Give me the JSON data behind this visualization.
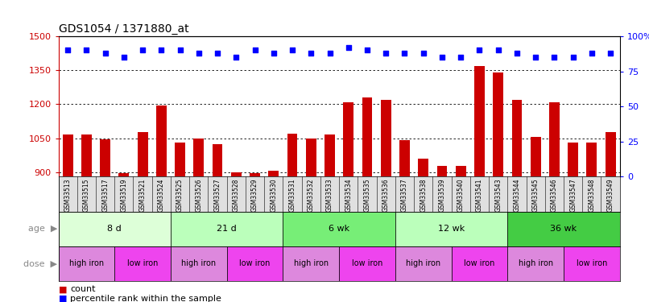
{
  "title": "GDS1054 / 1371880_at",
  "samples": [
    "GSM33513",
    "GSM33515",
    "GSM33517",
    "GSM33519",
    "GSM33521",
    "GSM33524",
    "GSM33525",
    "GSM33526",
    "GSM33527",
    "GSM33528",
    "GSM33529",
    "GSM33530",
    "GSM33531",
    "GSM33532",
    "GSM33533",
    "GSM33534",
    "GSM33535",
    "GSM33536",
    "GSM33537",
    "GSM33538",
    "GSM33539",
    "GSM33540",
    "GSM33541",
    "GSM33543",
    "GSM33544",
    "GSM33545",
    "GSM33546",
    "GSM33547",
    "GSM33548",
    "GSM33549"
  ],
  "counts": [
    1065,
    1068,
    1046,
    895,
    1078,
    1193,
    1030,
    1047,
    1022,
    898,
    897,
    908,
    1070,
    1048,
    1068,
    1210,
    1230,
    1218,
    1040,
    960,
    928,
    928,
    1370,
    1340,
    1220,
    1055,
    1210,
    1030,
    1030,
    1078
  ],
  "percentile": [
    90,
    90,
    88,
    85,
    90,
    90,
    90,
    88,
    88,
    85,
    90,
    88,
    90,
    88,
    88,
    92,
    90,
    88,
    88,
    88,
    85,
    85,
    90,
    90,
    88,
    85,
    85,
    85,
    88,
    88
  ],
  "ylim_left": [
    880,
    1500
  ],
  "ylim_right": [
    0,
    100
  ],
  "yticks_left": [
    900,
    1050,
    1200,
    1350,
    1500
  ],
  "yticks_right": [
    0,
    25,
    50,
    75,
    100
  ],
  "bar_color": "#cc0000",
  "dot_color": "#0000ff",
  "age_groups": [
    {
      "label": "8 d",
      "start": 0,
      "end": 6,
      "color": "#ddffd8"
    },
    {
      "label": "21 d",
      "start": 6,
      "end": 12,
      "color": "#bbffbb"
    },
    {
      "label": "6 wk",
      "start": 12,
      "end": 18,
      "color": "#77ee77"
    },
    {
      "label": "12 wk",
      "start": 18,
      "end": 24,
      "color": "#bbffbb"
    },
    {
      "label": "36 wk",
      "start": 24,
      "end": 30,
      "color": "#44cc44"
    }
  ],
  "dose_groups": [
    {
      "label": "high iron",
      "start": 0,
      "end": 3,
      "color": "#dd88dd"
    },
    {
      "label": "low iron",
      "start": 3,
      "end": 6,
      "color": "#ee44ee"
    },
    {
      "label": "high iron",
      "start": 6,
      "end": 9,
      "color": "#dd88dd"
    },
    {
      "label": "low iron",
      "start": 9,
      "end": 12,
      "color": "#ee44ee"
    },
    {
      "label": "high iron",
      "start": 12,
      "end": 15,
      "color": "#dd88dd"
    },
    {
      "label": "low iron",
      "start": 15,
      "end": 18,
      "color": "#ee44ee"
    },
    {
      "label": "high iron",
      "start": 18,
      "end": 21,
      "color": "#dd88dd"
    },
    {
      "label": "low iron",
      "start": 21,
      "end": 24,
      "color": "#ee44ee"
    },
    {
      "label": "high iron",
      "start": 24,
      "end": 27,
      "color": "#dd88dd"
    },
    {
      "label": "low iron",
      "start": 27,
      "end": 30,
      "color": "#ee44ee"
    }
  ],
  "background_color": "#ffffff",
  "title_color": "#000000",
  "left_axis_color": "#cc0000",
  "right_axis_color": "#0000ff",
  "legend_count": "count",
  "legend_pct": "percentile rank within the sample"
}
